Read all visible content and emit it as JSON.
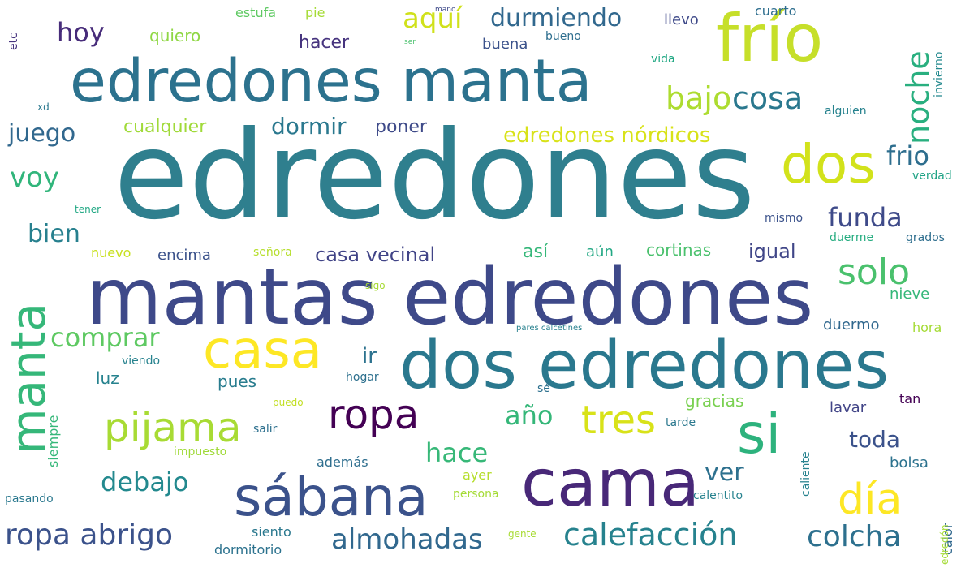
{
  "words": [
    {
      "text": "edredones",
      "color": "#2f7f8e"
    },
    {
      "text": "mantas edredones",
      "color": "#3e4989"
    },
    {
      "text": "dos edredones",
      "color": "#2a788e"
    },
    {
      "text": "edredones manta",
      "color": "#2c728e"
    },
    {
      "text": "frío",
      "color": "#c6df2a"
    },
    {
      "text": "cama",
      "color": "#482878"
    },
    {
      "text": "sábana",
      "color": "#3b528b"
    },
    {
      "text": "casa",
      "color": "#fde725"
    },
    {
      "text": "manta",
      "color": "#35b779"
    },
    {
      "text": "dos",
      "color": "#d2e21b"
    },
    {
      "text": "si",
      "color": "#2db27d"
    },
    {
      "text": "pijama",
      "color": "#a8db34"
    },
    {
      "text": "ropa",
      "color": "#440154"
    },
    {
      "text": "noche",
      "color": "#29af7f"
    },
    {
      "text": "tres",
      "color": "#d8e219"
    },
    {
      "text": "día",
      "color": "#fde725"
    },
    {
      "text": "solo",
      "color": "#4ac16d"
    },
    {
      "text": "bajo",
      "color": "#addc30"
    },
    {
      "text": "cosa",
      "color": "#2a788e"
    },
    {
      "text": "calefacción",
      "color": "#26828e"
    },
    {
      "text": "almohadas",
      "color": "#31688e"
    },
    {
      "text": "ropa abrigo",
      "color": "#3b528b"
    },
    {
      "text": "colcha",
      "color": "#2d708e"
    },
    {
      "text": "durmiendo",
      "color": "#31688e"
    },
    {
      "text": "aquí",
      "color": "#d0e11c"
    },
    {
      "text": "hoy",
      "color": "#472c7a"
    },
    {
      "text": "comprar",
      "color": "#5ec962"
    },
    {
      "text": "debajo",
      "color": "#23898e"
    },
    {
      "text": "hace",
      "color": "#37b878"
    },
    {
      "text": "año",
      "color": "#35b779"
    },
    {
      "text": "funda",
      "color": "#3e4a89"
    },
    {
      "text": "frio",
      "color": "#2e6e8e"
    },
    {
      "text": "voy",
      "color": "#31b57b"
    },
    {
      "text": "juego",
      "color": "#31688e"
    },
    {
      "text": "bien",
      "color": "#27808e"
    },
    {
      "text": "dormir",
      "color": "#2a788e"
    },
    {
      "text": "ver",
      "color": "#2d708e"
    },
    {
      "text": "toda",
      "color": "#3b528b"
    },
    {
      "text": "edredones nórdicos",
      "color": "#d8e219"
    },
    {
      "text": "casa vecinal",
      "color": "#414487"
    },
    {
      "text": "cualquier",
      "color": "#a0da39"
    },
    {
      "text": "poner",
      "color": "#3e4a89"
    },
    {
      "text": "quiero",
      "color": "#8fd744"
    },
    {
      "text": "hacer",
      "color": "#46337e"
    },
    {
      "text": "buena",
      "color": "#3b528b"
    },
    {
      "text": "estufa",
      "color": "#5ec962"
    },
    {
      "text": "pie",
      "color": "#a5db36"
    },
    {
      "text": "llevo",
      "color": "#3e4989"
    },
    {
      "text": "cuarto",
      "color": "#2e6e8e"
    },
    {
      "text": "bueno",
      "color": "#2e6e8e"
    },
    {
      "text": "vida",
      "color": "#22a884"
    },
    {
      "text": "invierno",
      "color": "#23898e"
    },
    {
      "text": "alguien",
      "color": "#26828e"
    },
    {
      "text": "verdad",
      "color": "#20a386"
    },
    {
      "text": "mismo",
      "color": "#3b528b"
    },
    {
      "text": "grados",
      "color": "#2e6e8e"
    },
    {
      "text": "duerme",
      "color": "#27ad81"
    },
    {
      "text": "nieve",
      "color": "#35b779"
    },
    {
      "text": "duermo",
      "color": "#31688e"
    },
    {
      "text": "hora",
      "color": "#a5db36"
    },
    {
      "text": "igual",
      "color": "#404688"
    },
    {
      "text": "cortinas",
      "color": "#4ac16d"
    },
    {
      "text": "aún",
      "color": "#22a884"
    },
    {
      "text": "así",
      "color": "#35b779"
    },
    {
      "text": "encima",
      "color": "#3b528b"
    },
    {
      "text": "nuevo",
      "color": "#c8e020"
    },
    {
      "text": "señora",
      "color": "#b5de2b"
    },
    {
      "text": "sigo",
      "color": "#a8db34"
    },
    {
      "text": "pares calcetines",
      "color": "#27808e"
    },
    {
      "text": "ir",
      "color": "#2c728e"
    },
    {
      "text": "luz",
      "color": "#26828e"
    },
    {
      "text": "pues",
      "color": "#287c8e"
    },
    {
      "text": "hogar",
      "color": "#2d708e"
    },
    {
      "text": "sé",
      "color": "#2d708e"
    },
    {
      "text": "gracias",
      "color": "#7ad151"
    },
    {
      "text": "tarde",
      "color": "#2a788e"
    },
    {
      "text": "lavar",
      "color": "#414487"
    },
    {
      "text": "tan",
      "color": "#440154"
    },
    {
      "text": "bolsa",
      "color": "#2c728e"
    },
    {
      "text": "calentito",
      "color": "#26828e"
    },
    {
      "text": "calor",
      "color": "#31688e"
    },
    {
      "text": "caliente",
      "color": "#26828e"
    },
    {
      "text": "edredón",
      "color": "#a5db36"
    },
    {
      "text": "además",
      "color": "#2e6e8e"
    },
    {
      "text": "ayer",
      "color": "#b5de2b"
    },
    {
      "text": "persona",
      "color": "#a5db36"
    },
    {
      "text": "gente",
      "color": "#a8db34"
    },
    {
      "text": "siento",
      "color": "#2a788e"
    },
    {
      "text": "dormitorio",
      "color": "#2c728e"
    },
    {
      "text": "puedo",
      "color": "#c2df23"
    },
    {
      "text": "salir",
      "color": "#2d708e"
    },
    {
      "text": "impuesto",
      "color": "#a0da39"
    },
    {
      "text": "viendo",
      "color": "#26828e"
    },
    {
      "text": "siempre",
      "color": "#35b779"
    },
    {
      "text": "pasando",
      "color": "#2a788e"
    },
    {
      "text": "tener",
      "color": "#22a884"
    },
    {
      "text": "xd",
      "color": "#2a788e"
    },
    {
      "text": "etc",
      "color": "#46337e"
    },
    {
      "text": "mano",
      "color": "#3e4989"
    },
    {
      "text": "ser",
      "color": "#4ac16d"
    }
  ]
}
